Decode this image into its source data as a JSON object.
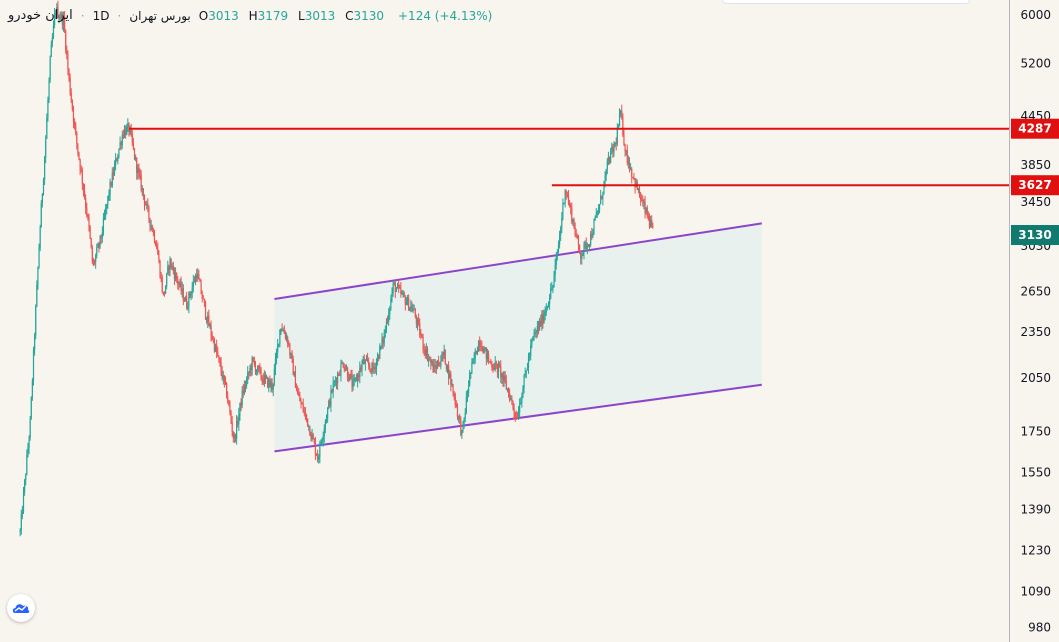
{
  "legend": {
    "symbol": "ایران خودرو",
    "interval": "1D",
    "exchange": "بورس تهران",
    "open_label": "O",
    "open": "3013",
    "high_label": "H",
    "high": "3179",
    "low_label": "L",
    "low": "3013",
    "close_label": "C",
    "close": "3130",
    "change": "+124 (+4.13%)"
  },
  "colors": {
    "background": "#f8f4ee",
    "up": "#26a69a",
    "down": "#ef5350",
    "resistance": "#e01010",
    "channel": "#8e44c9",
    "channel_fill": "#e6f0ee",
    "last_price_badge": "#107a6e"
  },
  "chart_data": {
    "type": "candlestick",
    "y_scale": "log",
    "ylim": [
      950,
      6200
    ],
    "y_ticks": [
      6000,
      5200,
      4450,
      3850,
      3450,
      3030,
      2650,
      2350,
      2050,
      1750,
      1550,
      1390,
      1230,
      1090,
      980
    ],
    "price_lines": [
      {
        "label": "4287",
        "value": 4287,
        "color": "#e01010"
      },
      {
        "label": "3627",
        "value": 3627,
        "color": "#e01010"
      }
    ],
    "last_price": {
      "label": "3130",
      "value": 3130
    },
    "channel": {
      "upper": [
        {
          "t": 0.272,
          "price": 2590
        },
        {
          "t": 0.755,
          "price": 3240
        }
      ],
      "lower": [
        {
          "t": 0.272,
          "price": 1650
        },
        {
          "t": 0.755,
          "price": 2010
        }
      ]
    },
    "path": [
      [
        0.02,
        1300
      ],
      [
        0.03,
        1800
      ],
      [
        0.035,
        2450
      ],
      [
        0.04,
        3250
      ],
      [
        0.045,
        4100
      ],
      [
        0.05,
        5300
      ],
      [
        0.055,
        6100
      ],
      [
        0.063,
        5900
      ],
      [
        0.068,
        5000
      ],
      [
        0.075,
        4200
      ],
      [
        0.082,
        3650
      ],
      [
        0.088,
        3200
      ],
      [
        0.092,
        2850
      ],
      [
        0.1,
        3100
      ],
      [
        0.108,
        3550
      ],
      [
        0.115,
        3900
      ],
      [
        0.122,
        4250
      ],
      [
        0.128,
        4287
      ],
      [
        0.135,
        3850
      ],
      [
        0.145,
        3400
      ],
      [
        0.155,
        3050
      ],
      [
        0.162,
        2600
      ],
      [
        0.168,
        2900
      ],
      [
        0.175,
        2750
      ],
      [
        0.185,
        2550
      ],
      [
        0.195,
        2800
      ],
      [
        0.205,
        2450
      ],
      [
        0.215,
        2200
      ],
      [
        0.225,
        1950
      ],
      [
        0.232,
        1700
      ],
      [
        0.24,
        1950
      ],
      [
        0.25,
        2150
      ],
      [
        0.26,
        2050
      ],
      [
        0.27,
        2000
      ],
      [
        0.278,
        2400
      ],
      [
        0.285,
        2300
      ],
      [
        0.295,
        1950
      ],
      [
        0.305,
        1800
      ],
      [
        0.315,
        1620
      ],
      [
        0.322,
        1800
      ],
      [
        0.33,
        2000
      ],
      [
        0.34,
        2150
      ],
      [
        0.35,
        2000
      ],
      [
        0.36,
        2150
      ],
      [
        0.37,
        2100
      ],
      [
        0.38,
        2300
      ],
      [
        0.39,
        2700
      ],
      [
        0.4,
        2600
      ],
      [
        0.41,
        2500
      ],
      [
        0.42,
        2250
      ],
      [
        0.43,
        2100
      ],
      [
        0.44,
        2200
      ],
      [
        0.45,
        1950
      ],
      [
        0.458,
        1730
      ],
      [
        0.465,
        2050
      ],
      [
        0.475,
        2300
      ],
      [
        0.485,
        2150
      ],
      [
        0.495,
        2100
      ],
      [
        0.505,
        1950
      ],
      [
        0.512,
        1820
      ],
      [
        0.52,
        2050
      ],
      [
        0.528,
        2300
      ],
      [
        0.538,
        2450
      ],
      [
        0.548,
        2700
      ],
      [
        0.555,
        3150
      ],
      [
        0.56,
        3600
      ],
      [
        0.567,
        3300
      ],
      [
        0.575,
        2950
      ],
      [
        0.585,
        3100
      ],
      [
        0.595,
        3450
      ],
      [
        0.603,
        3900
      ],
      [
        0.61,
        4100
      ],
      [
        0.615,
        4500
      ],
      [
        0.62,
        4000
      ],
      [
        0.628,
        3700
      ],
      [
        0.636,
        3450
      ],
      [
        0.642,
        3300
      ],
      [
        0.648,
        3130
      ]
    ]
  }
}
